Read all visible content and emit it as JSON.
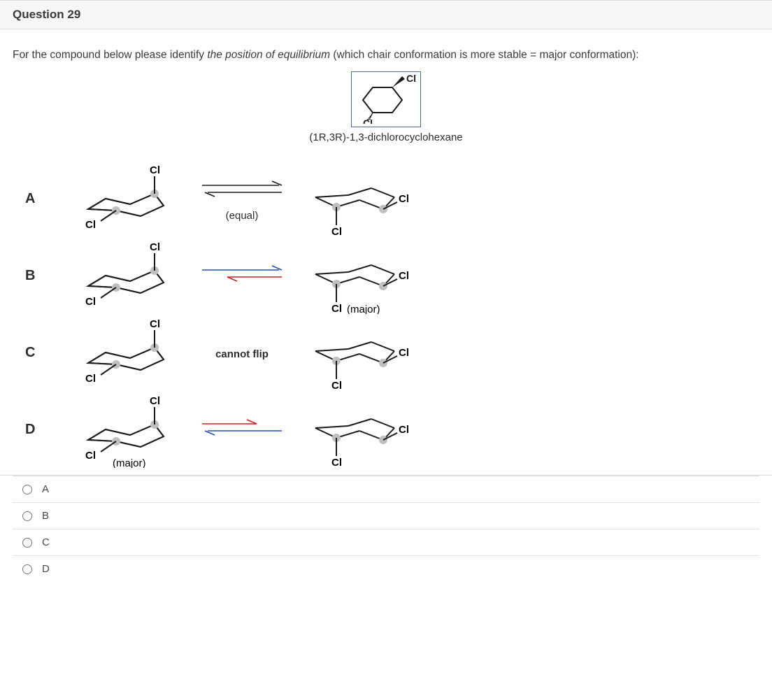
{
  "header": {
    "title": "Question 29"
  },
  "prompt": {
    "lead": "For the compound below please identify ",
    "ital": "the position of equilibrium",
    "tail": " (which chair conformation is more stable = major conformation):"
  },
  "compound": {
    "name": "(1R,3R)-1,3-dichlorocyclohexane",
    "cl_label": "Cl",
    "border_color": "#4a6aa0"
  },
  "options": [
    {
      "letter": "A",
      "left": {
        "cl_left": "Cl",
        "cl_right": "Cl",
        "major": ""
      },
      "right": {
        "cl_left": "Cl",
        "cl_right": "Cl",
        "major": ""
      },
      "arrow": {
        "type": "equilibrium",
        "label": "(equal)",
        "flip": true
      },
      "colors": {
        "fwd": "#1a1a1a",
        "rev": "#1a1a1a"
      }
    },
    {
      "letter": "B",
      "left": {
        "cl_left": "Cl",
        "cl_right": "Cl",
        "major": ""
      },
      "right": {
        "cl_left": "Cl",
        "cl_right": "Cl",
        "major": "(major)"
      },
      "arrow": {
        "type": "equilibrium",
        "label": "",
        "flip": true
      },
      "colors": {
        "fwd": "#2050c8",
        "rev": "#d02020"
      }
    },
    {
      "letter": "C",
      "left": {
        "cl_left": "Cl",
        "cl_right": "Cl",
        "major": ""
      },
      "right": {
        "cl_left": "Cl",
        "cl_right": "Cl",
        "major": ""
      },
      "arrow": {
        "type": "text",
        "label": "cannot flip",
        "flip": false
      },
      "colors": {
        "fwd": "#1a1a1a",
        "rev": "#1a1a1a"
      }
    },
    {
      "letter": "D",
      "left": {
        "cl_left": "Cl",
        "cl_right": "Cl",
        "major": "(major)"
      },
      "right": {
        "cl_left": "Cl",
        "cl_right": "Cl",
        "major": ""
      },
      "arrow": {
        "type": "equilibrium",
        "label": "",
        "flip": true
      },
      "colors": {
        "fwd": "#d02020",
        "rev": "#2050c8"
      }
    }
  ],
  "answers": [
    {
      "label": "A"
    },
    {
      "label": "B"
    },
    {
      "label": "C"
    },
    {
      "label": "D"
    }
  ],
  "style": {
    "bond_color": "#1a1a1a",
    "bond_width": 2,
    "cl_font": 15,
    "cl_weight": "700",
    "ball_color": "#bfbfbf"
  }
}
